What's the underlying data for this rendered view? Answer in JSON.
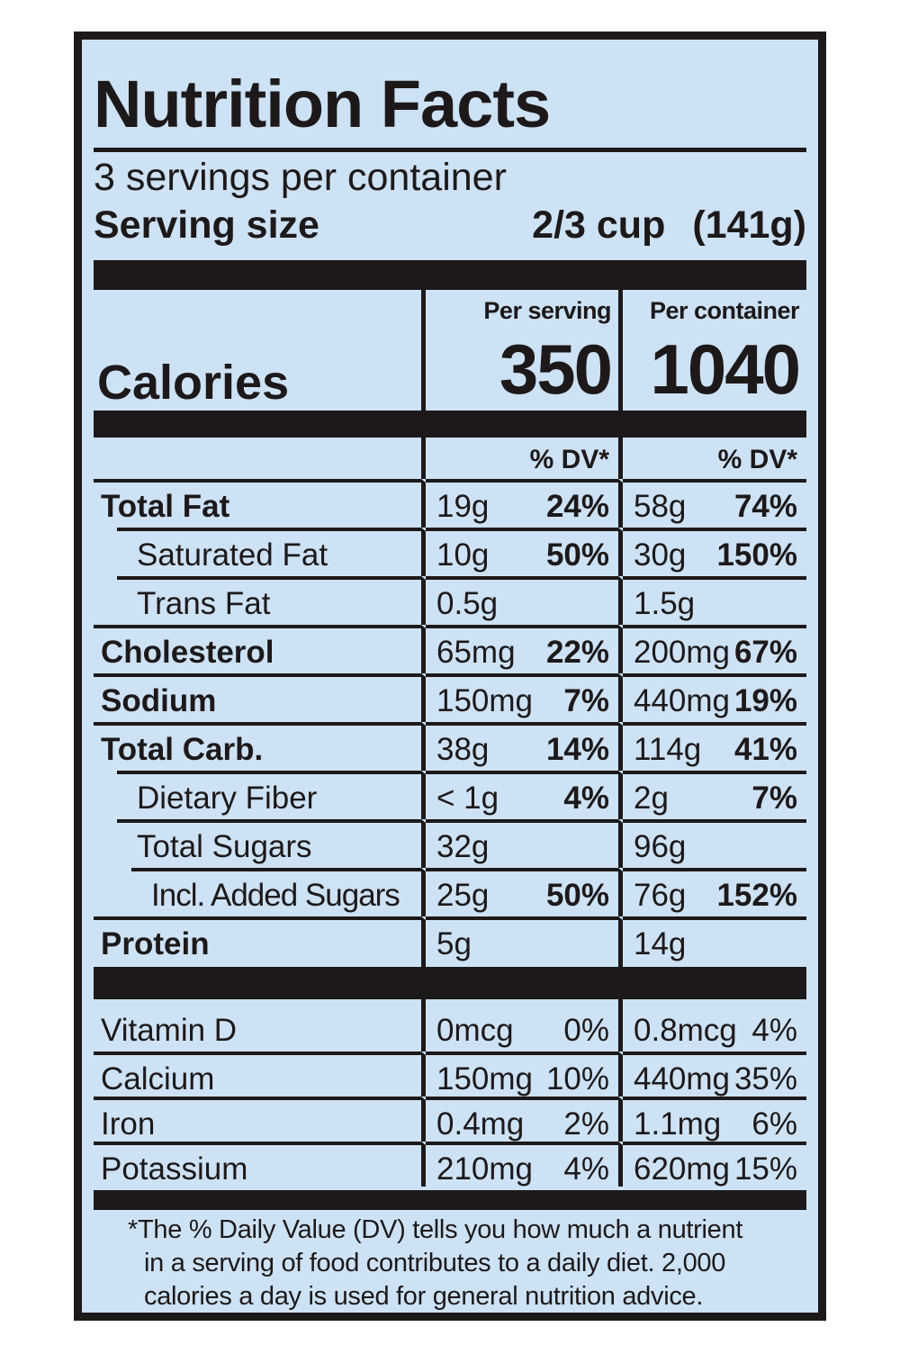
{
  "colors": {
    "ink": "#1d191a",
    "bg": "#cde2f4",
    "page": "#ffffff"
  },
  "header": {
    "title": "Nutrition Facts",
    "servings_per_container": "3 servings per container",
    "serving_size_label": "Serving size",
    "serving_size_amount": "2/3 cup",
    "serving_size_weight": "(141g)"
  },
  "columns": {
    "serving_header": "Per serving",
    "container_header": "Per container",
    "dv_header": "% DV*"
  },
  "calories": {
    "label": "Calories",
    "per_serving": "350",
    "per_container": "1040"
  },
  "nutrients": [
    {
      "name": "Total Fat",
      "serving": {
        "amount": "19g",
        "dv": "24%"
      },
      "container": {
        "amount": "58g",
        "dv": "74%"
      }
    },
    {
      "name": "Saturated Fat",
      "serving": {
        "amount": "10g",
        "dv": "50%"
      },
      "container": {
        "amount": "30g",
        "dv": "150%"
      }
    },
    {
      "name": "Trans Fat",
      "serving": {
        "amount": "0.5g",
        "dv": ""
      },
      "container": {
        "amount": "1.5g",
        "dv": ""
      }
    },
    {
      "name": "Cholesterol",
      "serving": {
        "amount": "65mg",
        "dv": "22%"
      },
      "container": {
        "amount": "200mg",
        "dv": "67%"
      }
    },
    {
      "name": "Sodium",
      "serving": {
        "amount": "150mg",
        "dv": "7%"
      },
      "container": {
        "amount": "440mg",
        "dv": "19%"
      }
    },
    {
      "name": "Total Carb.",
      "serving": {
        "amount": "38g",
        "dv": "14%"
      },
      "container": {
        "amount": "114g",
        "dv": "41%"
      }
    },
    {
      "name": "Dietary Fiber",
      "serving": {
        "amount": "< 1g",
        "dv": "4%"
      },
      "container": {
        "amount": "2g",
        "dv": "7%"
      }
    },
    {
      "name": "Total Sugars",
      "serving": {
        "amount": "32g",
        "dv": ""
      },
      "container": {
        "amount": "96g",
        "dv": ""
      }
    },
    {
      "name": "Incl. Added Sugars",
      "serving": {
        "amount": "25g",
        "dv": "50%"
      },
      "container": {
        "amount": "76g",
        "dv": "152%"
      }
    },
    {
      "name": "Protein",
      "serving": {
        "amount": "5g",
        "dv": ""
      },
      "container": {
        "amount": "14g",
        "dv": ""
      }
    }
  ],
  "vitamins": [
    {
      "name": "Vitamin D",
      "serving": {
        "amount": "0mcg",
        "dv": "0%"
      },
      "container": {
        "amount": "0.8mcg",
        "dv": "4%"
      }
    },
    {
      "name": "Calcium",
      "serving": {
        "amount": "150mg",
        "dv": "10%"
      },
      "container": {
        "amount": "440mg",
        "dv": "35%"
      }
    },
    {
      "name": "Iron",
      "serving": {
        "amount": "0.4mg",
        "dv": "2%"
      },
      "container": {
        "amount": "1.1mg",
        "dv": "6%"
      }
    },
    {
      "name": "Potassium",
      "serving": {
        "amount": "210mg",
        "dv": "4%"
      },
      "container": {
        "amount": "620mg",
        "dv": "15%"
      }
    }
  ],
  "footnote": {
    "lines": [
      "*The % Daily Value (DV) tells you how much a nutrient",
      "in a serving of food contributes to a daily diet. 2,000",
      "calories a day is used for general nutrition advice."
    ]
  }
}
